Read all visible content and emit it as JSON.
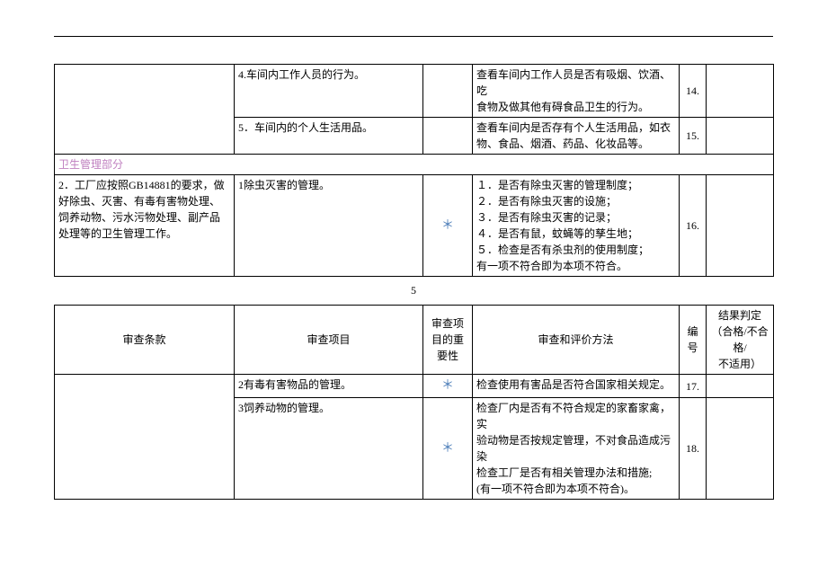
{
  "table1": {
    "rows": [
      {
        "item": "4.车间内工作人员的行为。",
        "importance": "",
        "method": "查看车间内工作人员是否有吸烟、饮酒、吃\n食物及做其他有碍食品卫生的行为。",
        "no": "14."
      },
      {
        "item": "5．车间内的个人生活用品。",
        "importance": "",
        "method": "查看车间内是否存有个人生活用品，如衣物、食品、烟酒、药品、化妆品等。",
        "no": "15."
      }
    ],
    "section_title": "卫生管理部分",
    "clause2": "2．工厂应按照GB14881的要求，做好除虫、灭害、有毒有害物处理、饲养动物、污水污物处理、副产品处理等的卫生管理工作。",
    "row3": {
      "item": "1除虫灭害的管理。",
      "importance": "＊",
      "method": "１．是否有除虫灭害的管理制度；\n２．是否有除虫灭害的设施；\n３．是否有除虫灭害的记录；\n４．是否有鼠，蚊蝇等的孳生地；\n５．检查是否有杀虫剂的使用制度；\n有一项不符合即为本项不符合。",
      "no": "16."
    }
  },
  "page_number": "5",
  "table2": {
    "headers": {
      "clause": "审查条款",
      "item": "审查项目",
      "importance": "审查项目的重要性",
      "method": "审查和评价方法",
      "no": "编号",
      "result": "结果判定\n（合格/不合格/\n不适用）"
    },
    "rows": [
      {
        "item": "2有毒有害物品的管理。",
        "importance": "＊",
        "method": "检查使用有害品是否符合国家相关规定。",
        "no": "17."
      },
      {
        "item": "3饲养动物的管理。",
        "importance": "＊",
        "method": "检查厂内是否有不符合规定的家畜家禽，实\n验动物是否按规定管理，不对食品造成污染\n检查工厂是否有相关管理办法和措施;\n(有一项不符合即为本项不符合)。",
        "no": "18."
      }
    ]
  }
}
